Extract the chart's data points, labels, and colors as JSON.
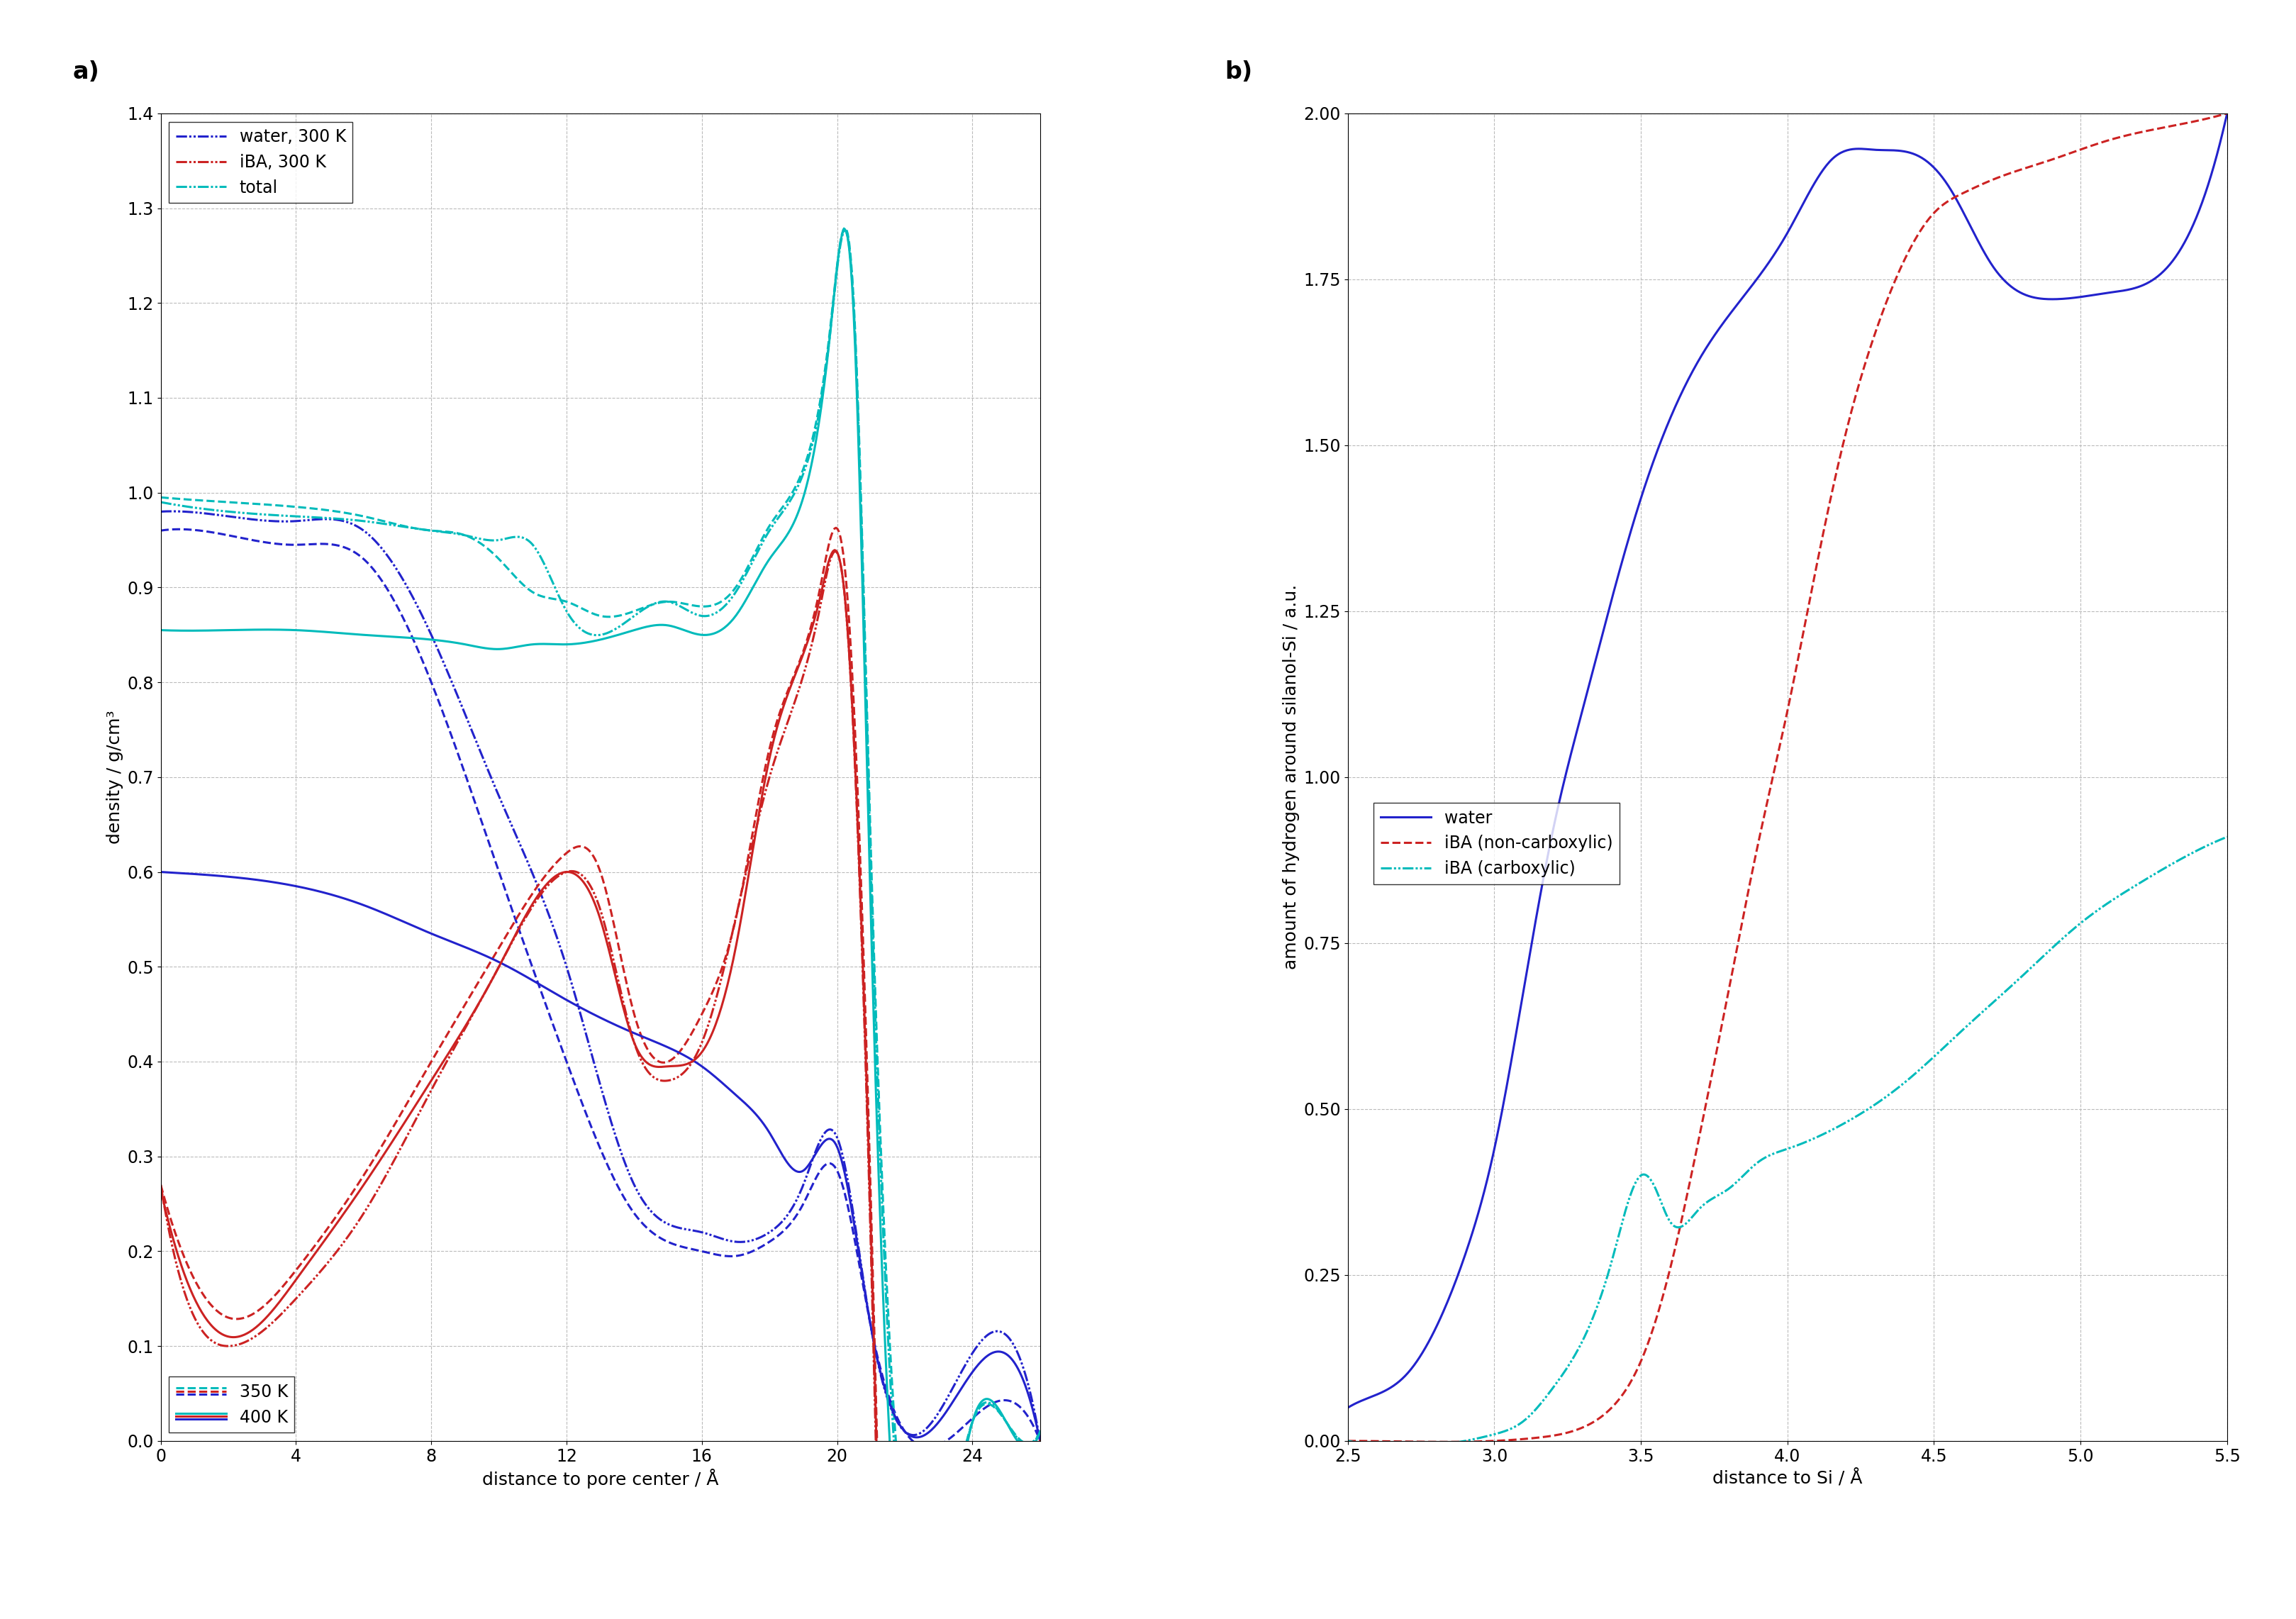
{
  "panel_a": {
    "title": "a)",
    "xlabel": "distance to pore center / Å",
    "ylabel": "density / g/cm³",
    "xlim": [
      0,
      26
    ],
    "ylim": [
      0,
      1.4
    ],
    "xticks": [
      0,
      4,
      8,
      12,
      16,
      20,
      24
    ],
    "yticks": [
      0.0,
      0.1,
      0.2,
      0.3,
      0.4,
      0.5,
      0.6,
      0.7,
      0.8,
      0.9,
      1.0,
      1.1,
      1.2,
      1.3,
      1.4
    ],
    "colors": {
      "water": "#2222cc",
      "iBA": "#cc2222",
      "total": "#00bbbb"
    }
  },
  "panel_b": {
    "title": "b)",
    "xlabel": "distance to Si / Å",
    "ylabel": "amount of hydrogen around silanol-Si / a.u.",
    "xlim": [
      2.5,
      5.5
    ],
    "ylim": [
      0.0,
      2.0
    ],
    "xticks": [
      2.5,
      3.0,
      3.5,
      4.0,
      4.5,
      5.0,
      5.5
    ],
    "yticks": [
      0.0,
      0.25,
      0.5,
      0.75,
      1.0,
      1.25,
      1.5,
      1.75,
      2.0
    ],
    "colors": {
      "water": "#2222cc",
      "iBA_non": "#cc2222",
      "iBA_car": "#00bbbb"
    }
  },
  "background_color": "#ffffff",
  "grid_color": "#bbbbbb",
  "font_size": 18
}
